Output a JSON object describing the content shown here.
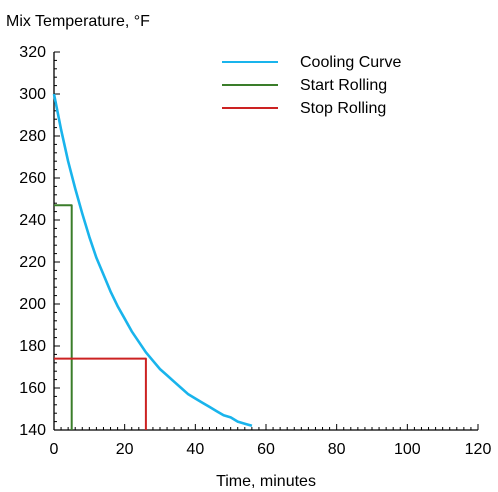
{
  "chart_data": {
    "type": "line",
    "title": "",
    "ylabel": "Mix Temperature, °F",
    "xlabel": "Time, minutes",
    "xlim": [
      0,
      120
    ],
    "ylim": [
      140,
      320
    ],
    "x_ticks": [
      0,
      20,
      40,
      60,
      80,
      100,
      120
    ],
    "y_ticks": [
      140,
      160,
      180,
      200,
      220,
      240,
      260,
      280,
      300,
      320
    ],
    "grid": false,
    "legend_position": "top-right",
    "series": [
      {
        "name": "Cooling Curve",
        "color": "#19b4ec",
        "x": [
          0,
          2,
          4,
          6,
          8,
          10,
          12,
          14,
          16,
          18,
          20,
          22,
          24,
          26,
          28,
          30,
          32,
          34,
          36,
          38,
          40,
          42,
          44,
          46,
          48,
          50,
          52,
          54,
          56
        ],
        "y": [
          300,
          283,
          268,
          255,
          243,
          232,
          222,
          214,
          206,
          199,
          193,
          187,
          182,
          177,
          173,
          169,
          166,
          163,
          160,
          157,
          155,
          153,
          151,
          149,
          147,
          146,
          144,
          143,
          142
        ]
      },
      {
        "name": "Start Rolling",
        "color": "#3a7d2a",
        "x": [
          0,
          5,
          5
        ],
        "y": [
          247,
          247,
          140
        ]
      },
      {
        "name": "Stop Rolling",
        "color": "#cc2222",
        "x": [
          0,
          26,
          26
        ],
        "y": [
          174,
          174,
          140
        ]
      }
    ]
  }
}
